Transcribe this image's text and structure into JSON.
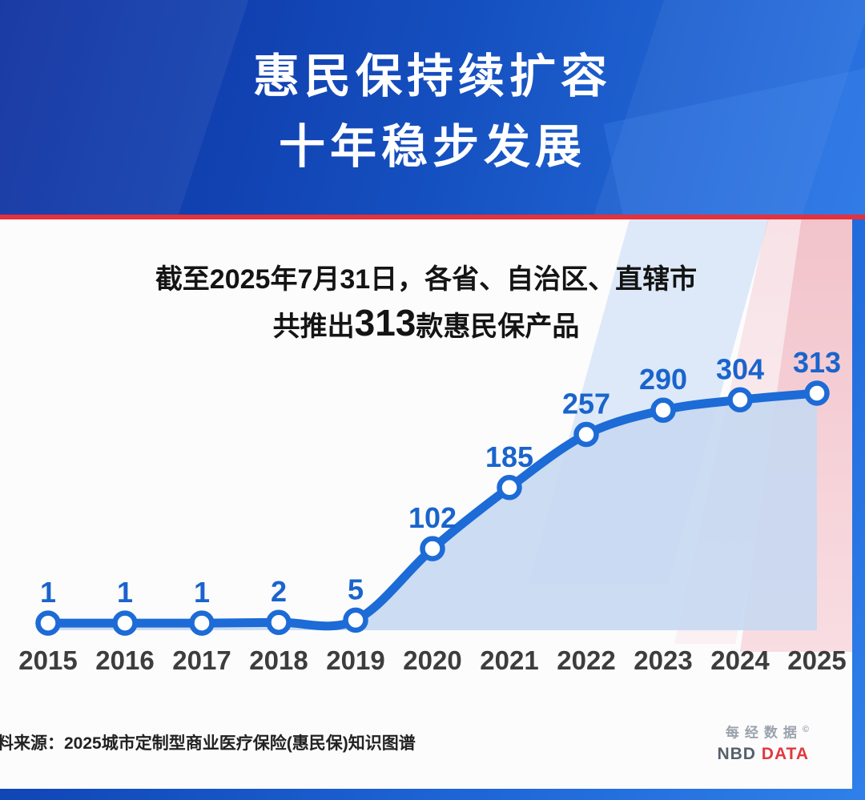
{
  "header": {
    "title_line1": "惠民保持续扩容",
    "title_line2": "十年稳步发展"
  },
  "subtitle": {
    "line1": "截至2025年7月31日，各省、自治区、直辖市",
    "line2_prefix": "共推出",
    "line2_highlight": "313",
    "line2_suffix": "款惠民保产品"
  },
  "chart_data": {
    "type": "line",
    "categories": [
      "2015",
      "2016",
      "2017",
      "2018",
      "2019",
      "2020",
      "2021",
      "2022",
      "2023",
      "2024",
      "2025"
    ],
    "values": [
      1,
      1,
      1,
      2,
      5,
      102,
      185,
      257,
      290,
      304,
      313
    ],
    "title": "",
    "xlabel": "",
    "ylabel": "",
    "ylim": [
      0,
      330
    ],
    "grid": false,
    "legend": "none",
    "line_color": "#1c6bd6",
    "marker_fill": "#ffffff",
    "area_color": "#c6d8f1",
    "label_color": "#1a64cc",
    "axis_label_color": "#3d3d3d"
  },
  "footer": {
    "source": "料来源：2025城市定制型商业医疗保险(惠民保)知识图谱",
    "brand_cn": "每经数据",
    "brand_mark": "©",
    "brand_en_gray": "NBD",
    "brand_en_red": "DATA"
  }
}
